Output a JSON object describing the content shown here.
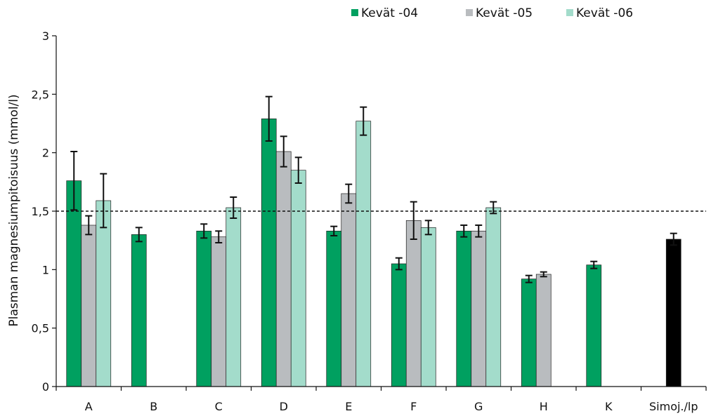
{
  "chart_data": {
    "type": "bar",
    "title": "",
    "xlabel": "",
    "ylabel": "Plasman magnesiumpitoisuus (mmol/l)",
    "ylim": [
      0,
      3
    ],
    "yticks": [
      "0",
      "0,5",
      "1",
      "1,5",
      "2",
      "2,5",
      "3"
    ],
    "ytick_values": [
      0,
      0.5,
      1,
      1.5,
      2,
      2.5,
      3
    ],
    "reference_line": {
      "value": 1.5,
      "style": "dashed"
    },
    "categories": [
      "A",
      "B",
      "C",
      "D",
      "E",
      "F",
      "G",
      "H",
      "K",
      "Simoj./lp"
    ],
    "legend_position": "top",
    "series": [
      {
        "name": "Kevät -04",
        "color": "#00a060",
        "values": [
          1.76,
          1.3,
          1.33,
          2.29,
          1.33,
          1.05,
          1.33,
          0.92,
          1.04,
          null
        ],
        "errors": [
          0.25,
          0.06,
          0.06,
          0.19,
          0.04,
          0.05,
          0.05,
          0.03,
          0.03,
          null
        ]
      },
      {
        "name": "Kevät -05",
        "color": "#b9bcbf",
        "values": [
          1.38,
          null,
          1.28,
          2.01,
          1.65,
          1.42,
          1.33,
          0.96,
          null,
          null
        ],
        "errors": [
          0.08,
          null,
          0.05,
          0.13,
          0.08,
          0.16,
          0.05,
          0.02,
          null,
          null
        ]
      },
      {
        "name": "Kevät -06",
        "color": "#a3dccb",
        "values": [
          1.59,
          null,
          1.53,
          1.85,
          2.27,
          1.36,
          1.53,
          null,
          null,
          null
        ],
        "errors": [
          0.23,
          null,
          0.09,
          0.11,
          0.12,
          0.06,
          0.05,
          null,
          null,
          null
        ]
      },
      {
        "name": "",
        "color": "#000000",
        "values": [
          null,
          null,
          null,
          null,
          null,
          null,
          null,
          null,
          null,
          1.26
        ],
        "errors": [
          null,
          null,
          null,
          null,
          null,
          null,
          null,
          null,
          null,
          0.05
        ]
      }
    ]
  }
}
